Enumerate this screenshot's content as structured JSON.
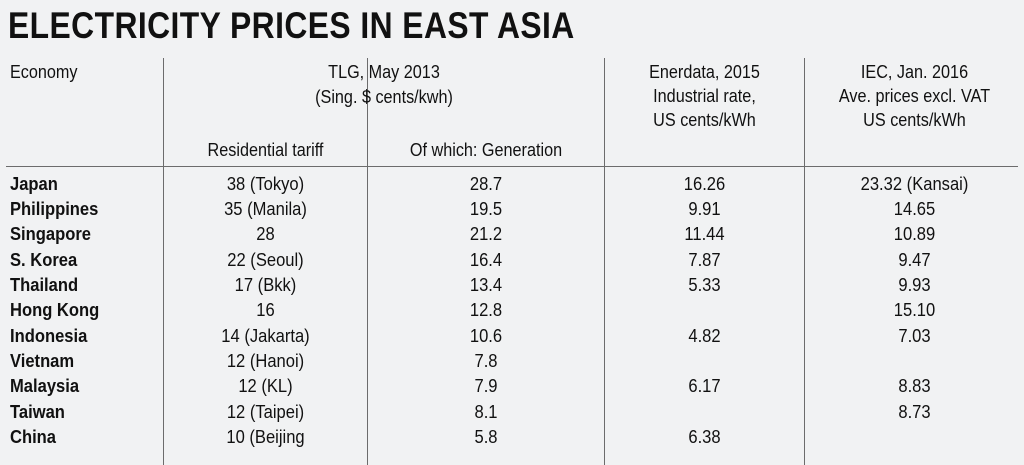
{
  "title": "ELECTRICITY PRICES IN EAST ASIA",
  "headers": {
    "economy": "Economy",
    "tlg_line1": "TLG, May 2013",
    "tlg_line2": "(Sing. $ cents/kwh)",
    "residential": "Residential tariff",
    "generation": "Of which: Generation",
    "ener_line1": "Enerdata, 2015",
    "ener_line2": "Industrial rate,",
    "ener_line3": "US cents/kWh",
    "iec_line1": "IEC, Jan. 2016",
    "iec_line2": "Ave. prices excl. VAT",
    "iec_line3": "US cents/kWh"
  },
  "rows": [
    {
      "economy": "Japan",
      "residential": "38 (Tokyo)",
      "generation": "28.7",
      "enerdata": "16.26",
      "iec": "23.32 (Kansai)"
    },
    {
      "economy": "Philippines",
      "residential": "35 (Manila)",
      "generation": "19.5",
      "enerdata": "9.91",
      "iec": "14.65"
    },
    {
      "economy": "Singapore",
      "residential": "28",
      "generation": "21.2",
      "enerdata": "11.44",
      "iec": "10.89"
    },
    {
      "economy": "S. Korea",
      "residential": "22 (Seoul)",
      "generation": "16.4",
      "enerdata": "7.87",
      "iec": "9.47"
    },
    {
      "economy": "Thailand",
      "residential": "17 (Bkk)",
      "generation": "13.4",
      "enerdata": "5.33",
      "iec": "9.93"
    },
    {
      "economy": "Hong Kong",
      "residential": "16",
      "generation": "12.8",
      "enerdata": "",
      "iec": "15.10"
    },
    {
      "economy": "Indonesia",
      "residential": "14 (Jakarta)",
      "generation": "10.6",
      "enerdata": "4.82",
      "iec": "7.03"
    },
    {
      "economy": "Vietnam",
      "residential": "12 (Hanoi)",
      "generation": "7.8",
      "enerdata": "",
      "iec": ""
    },
    {
      "economy": "Malaysia",
      "residential": "12 (KL)",
      "generation": "7.9",
      "enerdata": "6.17",
      "iec": "8.83"
    },
    {
      "economy": "Taiwan",
      "residential": "12 (Taipei)",
      "generation": "8.1",
      "enerdata": "",
      "iec": "8.73"
    },
    {
      "economy": "China",
      "residential": "10 (Beijing",
      "generation": "5.8",
      "enerdata": "6.38",
      "iec": ""
    }
  ]
}
